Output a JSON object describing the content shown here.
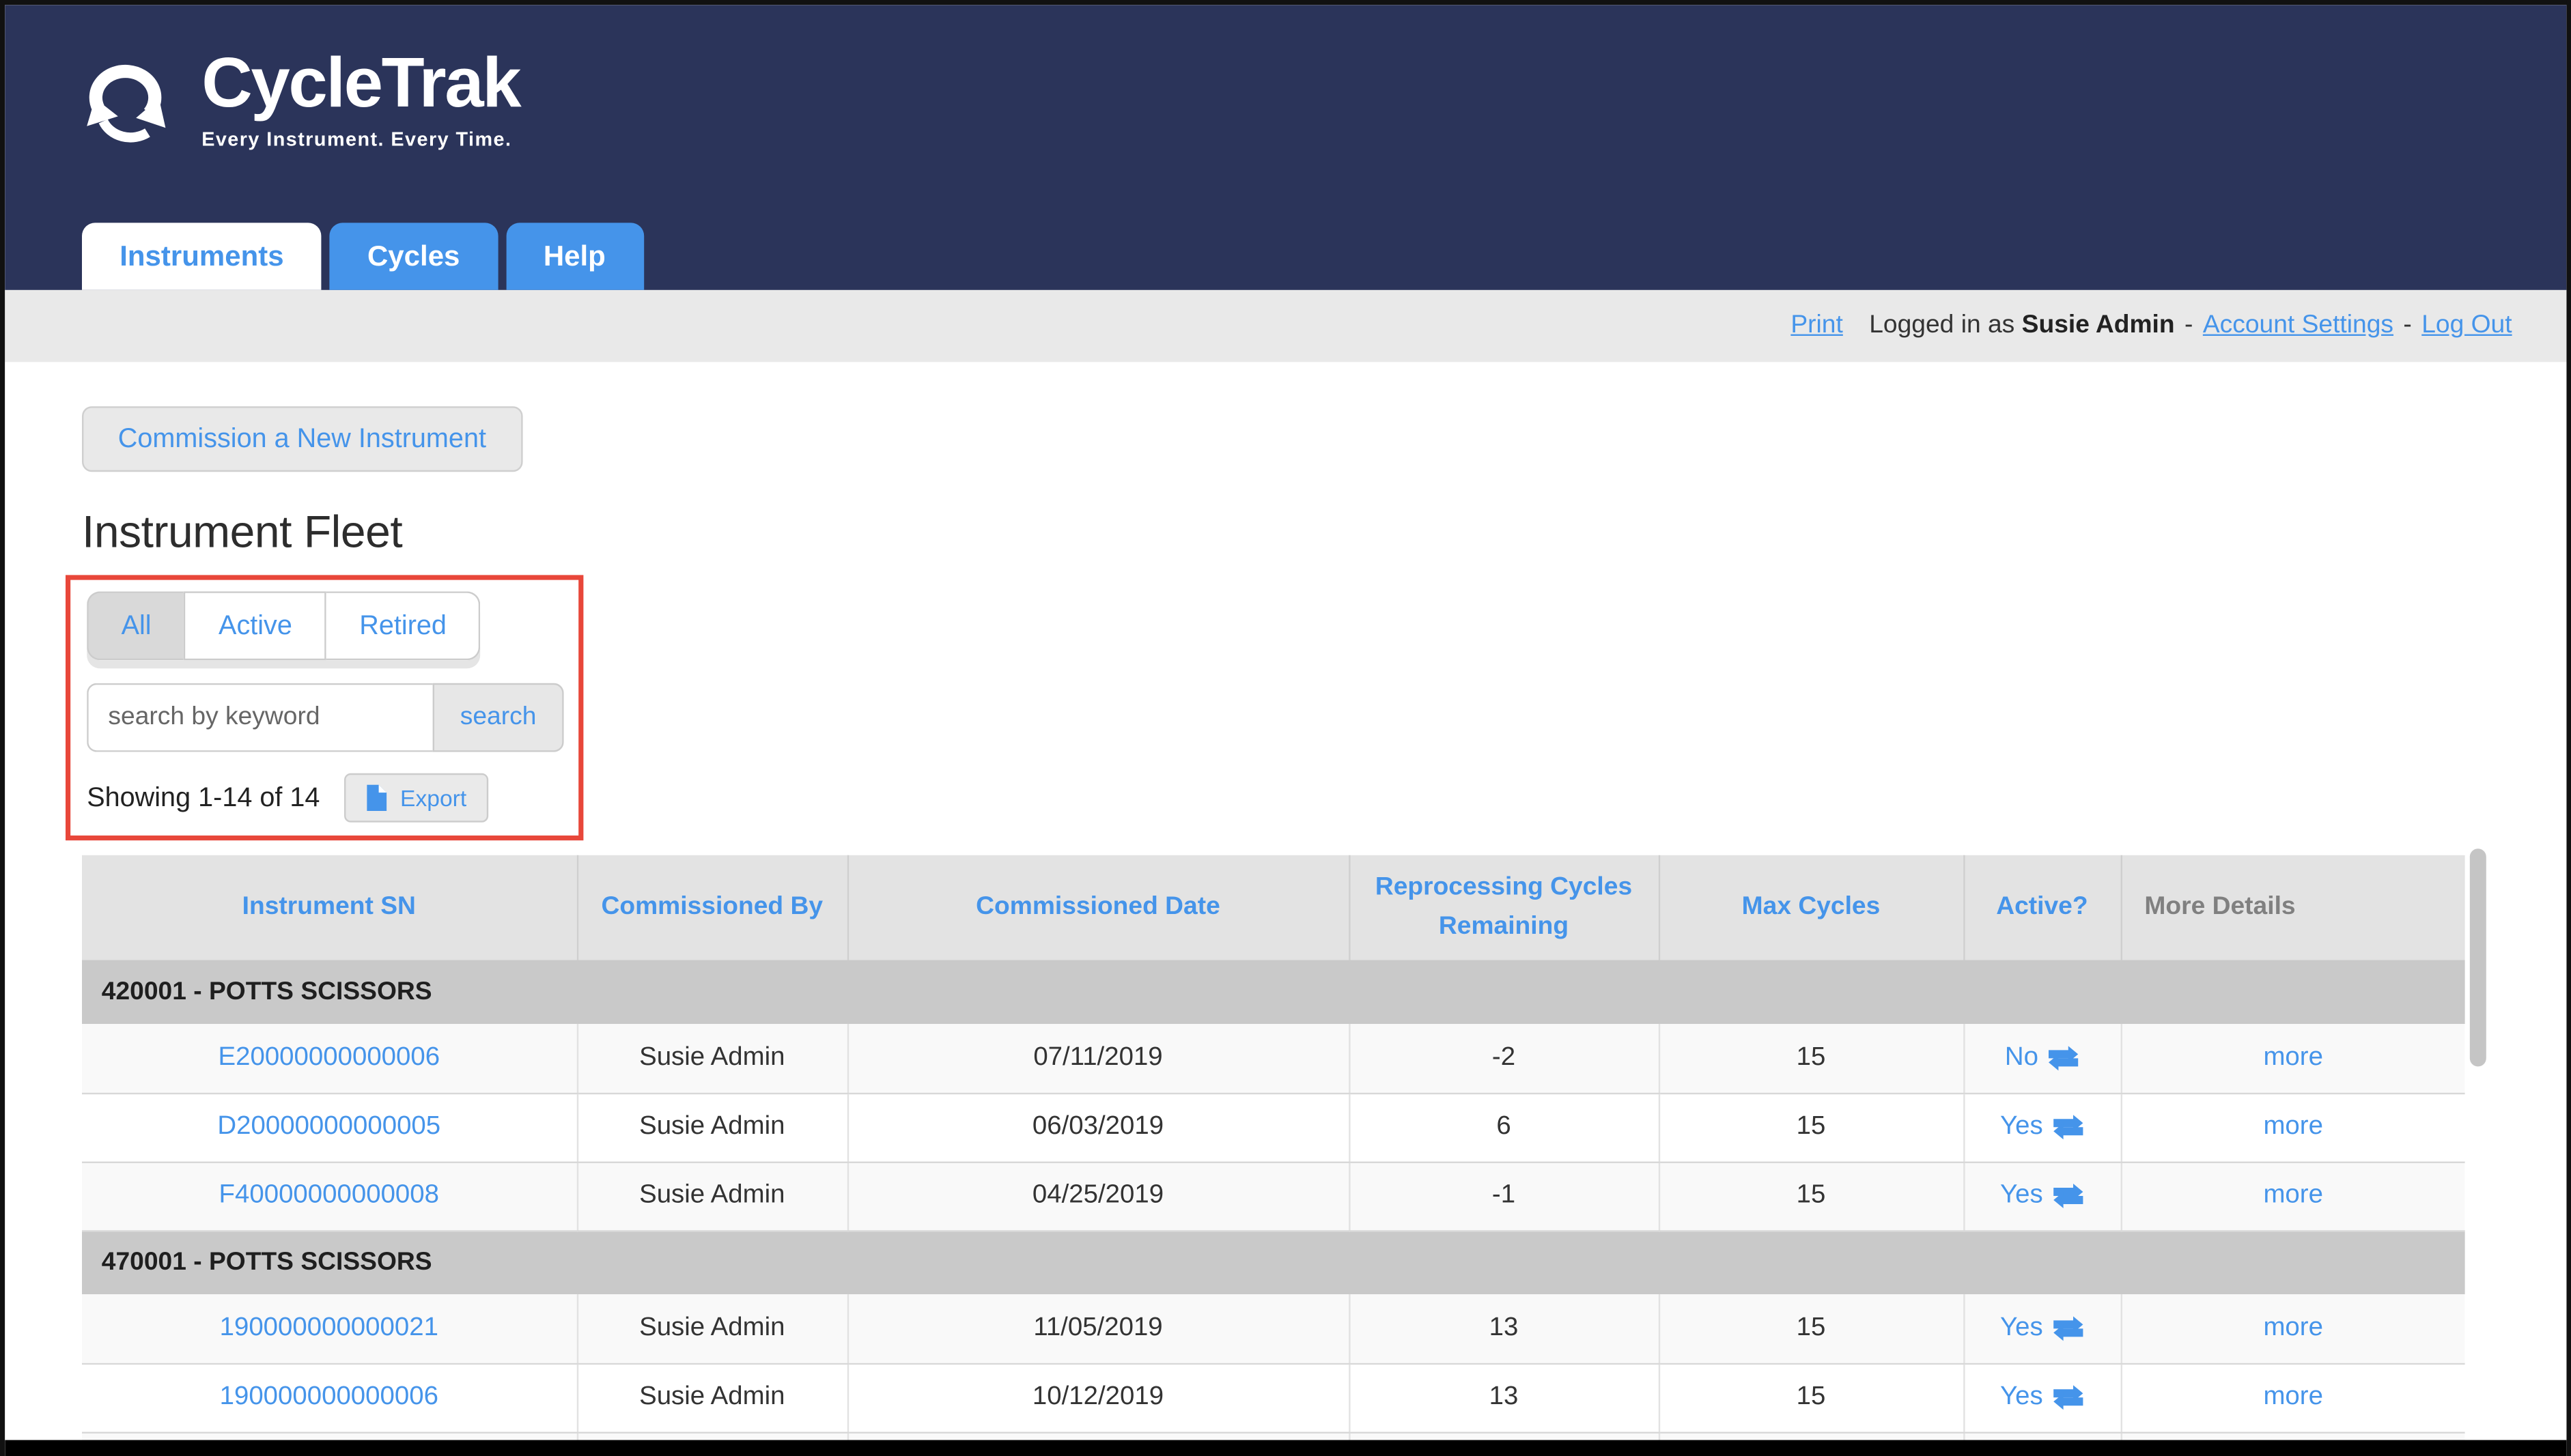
{
  "brand": {
    "name": "CycleTrak",
    "tagline": "Every Instrument. Every Time."
  },
  "nav": {
    "tabs": [
      {
        "label": "Instruments",
        "active": true
      },
      {
        "label": "Cycles",
        "active": false
      },
      {
        "label": "Help",
        "active": false
      }
    ]
  },
  "userbar": {
    "print_link": "Print",
    "logged_in_prefix": "Logged in as",
    "user_name": "Susie Admin",
    "separator": "-",
    "account_settings_link": "Account Settings",
    "logout_link": "Log Out"
  },
  "actions": {
    "commission_button": "Commission a New Instrument"
  },
  "page": {
    "title": "Instrument Fleet"
  },
  "filters": {
    "segments": [
      {
        "label": "All",
        "selected": true
      },
      {
        "label": "Active",
        "selected": false
      },
      {
        "label": "Retired",
        "selected": false
      }
    ],
    "search_placeholder": "search by keyword",
    "search_button": "search",
    "showing_text": "Showing 1-14 of 14",
    "export_button": "Export",
    "export_icon": "file-icon"
  },
  "table": {
    "headers": [
      "Instrument SN",
      "Commissioned By",
      "Commissioned Date",
      "Reprocessing Cycles Remaining",
      "Max Cycles",
      "Active?",
      "More Details"
    ],
    "active_icon": "swap-arrows-icon",
    "groups": [
      {
        "label": "420001 - POTTS SCISSORS",
        "rows": [
          {
            "sn": "E20000000000006",
            "by": "Susie Admin",
            "date": "07/11/2019",
            "remaining": "-2",
            "negative": true,
            "max": "15",
            "active": "No",
            "more": "more"
          },
          {
            "sn": "D20000000000005",
            "by": "Susie Admin",
            "date": "06/03/2019",
            "remaining": "6",
            "negative": false,
            "max": "15",
            "active": "Yes",
            "more": "more"
          },
          {
            "sn": "F40000000000008",
            "by": "Susie Admin",
            "date": "04/25/2019",
            "remaining": "-1",
            "negative": true,
            "max": "15",
            "active": "Yes",
            "more": "more"
          }
        ]
      },
      {
        "label": "470001 - POTTS SCISSORS",
        "rows": [
          {
            "sn": "190000000000021",
            "by": "Susie Admin",
            "date": "11/05/2019",
            "remaining": "13",
            "negative": false,
            "max": "15",
            "active": "Yes",
            "more": "more"
          },
          {
            "sn": "190000000000006",
            "by": "Susie Admin",
            "date": "10/12/2019",
            "remaining": "13",
            "negative": false,
            "max": "15",
            "active": "Yes",
            "more": "more"
          }
        ]
      }
    ]
  },
  "colors": {
    "navy_header": "#2b345a",
    "accent_blue": "#4594ea",
    "annotation_red": "#e8473a",
    "negative_red": "#e03a38",
    "userbar_gray": "#e9e9e9",
    "group_row_gray": "#c9c9c9"
  }
}
